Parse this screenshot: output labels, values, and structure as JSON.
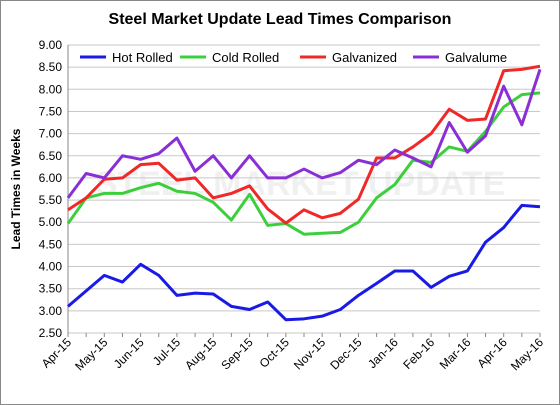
{
  "chart_data": {
    "type": "line",
    "title": "Steel Market Update Lead Times Comparison",
    "ylabel": "Lead Times in Weeks",
    "watermark": "STEEL MARKET UPDATE",
    "categories": [
      "Apr-15",
      null,
      "May-15",
      null,
      "Jun-15",
      null,
      "Jul-15",
      null,
      "Aug-15",
      null,
      "Sep-15",
      null,
      "Oct-15",
      null,
      "Nov-15",
      null,
      "Dec-15",
      null,
      "Jan-16",
      null,
      "Feb-16",
      null,
      "Mar-16",
      null,
      "Apr-16",
      null,
      "May-16"
    ],
    "series": [
      {
        "name": "Hot Rolled",
        "color": "#1a1ae6",
        "values": [
          3.1,
          3.45,
          3.8,
          3.65,
          4.05,
          3.8,
          3.35,
          3.4,
          3.38,
          3.1,
          3.03,
          3.2,
          2.8,
          2.82,
          2.88,
          3.03,
          3.35,
          3.62,
          3.9,
          3.9,
          3.53,
          3.78,
          3.9,
          4.55,
          4.88,
          5.38,
          5.35
        ]
      },
      {
        "name": "Cold Rolled",
        "color": "#3ccf3c",
        "values": [
          4.97,
          5.55,
          5.65,
          5.65,
          5.78,
          5.88,
          5.7,
          5.65,
          5.45,
          5.05,
          5.63,
          4.93,
          4.97,
          4.73,
          4.75,
          4.77,
          5.0,
          5.55,
          5.85,
          6.4,
          6.35,
          6.7,
          6.6,
          7.05,
          7.6,
          7.88,
          7.92
        ]
      },
      {
        "name": "Galvanized",
        "color": "#f02828",
        "values": [
          5.28,
          5.55,
          5.97,
          6.0,
          6.3,
          6.33,
          5.95,
          6.0,
          5.55,
          5.65,
          5.82,
          5.3,
          4.98,
          5.28,
          5.1,
          5.2,
          5.52,
          6.45,
          6.45,
          6.7,
          7.0,
          7.55,
          7.3,
          7.33,
          8.42,
          8.45,
          8.52
        ]
      },
      {
        "name": "Galvalume",
        "color": "#8a2fd6",
        "values": [
          5.55,
          6.1,
          6.0,
          6.5,
          6.42,
          6.55,
          6.9,
          6.15,
          6.5,
          6.0,
          6.5,
          6.0,
          6.0,
          6.2,
          6.0,
          6.12,
          6.4,
          6.3,
          6.63,
          6.45,
          6.25,
          7.25,
          6.58,
          6.95,
          8.07,
          7.2,
          8.45
        ]
      }
    ],
    "ylim": [
      2.5,
      9
    ],
    "yticks": [
      {
        "value": 2.5,
        "label": "2.50"
      },
      {
        "value": 3,
        "label": "3.00"
      },
      {
        "value": 3.5,
        "label": "3.50"
      },
      {
        "value": 4,
        "label": "4.00"
      },
      {
        "value": 4.5,
        "label": "4.50"
      },
      {
        "value": 5,
        "label": "5.00"
      },
      {
        "value": 5.5,
        "label": "5.50"
      },
      {
        "value": 6,
        "label": "6.00"
      },
      {
        "value": 6.5,
        "label": "6.50"
      },
      {
        "value": 7,
        "label": "7.00"
      },
      {
        "value": 7.5,
        "label": "7.50"
      },
      {
        "value": 8,
        "label": "8.00"
      },
      {
        "value": 8.5,
        "label": "8.50"
      },
      {
        "value": 9,
        "label": "9.00"
      }
    ],
    "grid": true,
    "legend": "top"
  }
}
